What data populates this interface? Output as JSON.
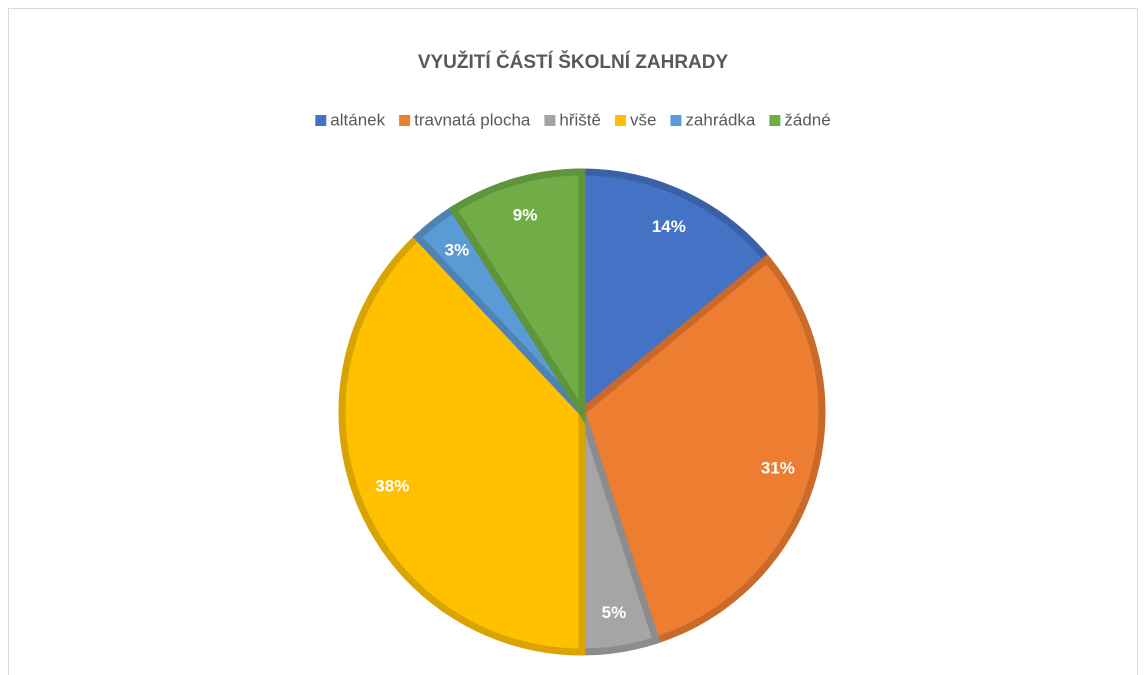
{
  "chart_data": {
    "type": "pie",
    "title": "VYUŽITÍ ČÁSTÍ  ŠKOLNÍ  ZAHRADY",
    "categories": [
      "altánek",
      "travnatá plocha",
      "hřiště",
      "vše",
      "zahrádka",
      "žádné"
    ],
    "values": [
      14,
      31,
      5,
      38,
      3,
      9
    ],
    "value_labels": [
      "14%",
      "31%",
      "5%",
      "38%",
      "3%",
      "9%"
    ],
    "colors": [
      "#4472c4",
      "#ed7d31",
      "#a5a5a5",
      "#ffc000",
      "#5b9bd5",
      "#70ad47"
    ],
    "legend": "top"
  }
}
